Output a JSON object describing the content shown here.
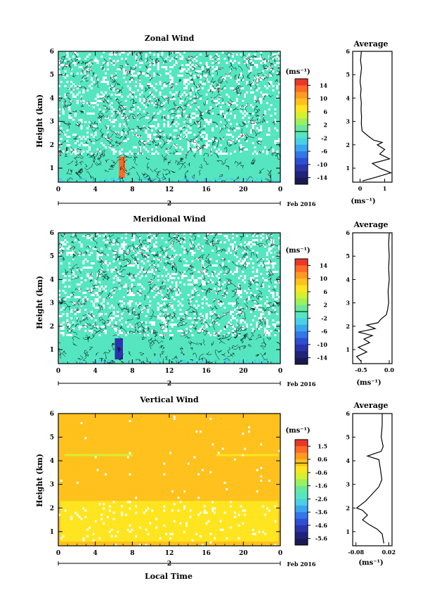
{
  "chart_data": [
    {
      "type": "heatmap",
      "title": "Zonal Wind",
      "ylabel": "Height (km)",
      "xlabel": "",
      "x_ticks": [
        "0",
        "4",
        "8",
        "12",
        "16",
        "20",
        "0"
      ],
      "xlim": [
        0,
        24
      ],
      "y_ticks": [
        "1",
        "2",
        "3",
        "4",
        "5",
        "6"
      ],
      "ylim": [
        0.4,
        6.0
      ],
      "date_day": "2",
      "date_month": "Feb 2016",
      "colorbar": {
        "unit": "(ms⁻¹)",
        "ticks": [
          "14",
          "10",
          "6",
          "2",
          "-2",
          "-6",
          "-10",
          "-14"
        ],
        "range": [
          -16,
          16
        ],
        "dominant_value": 0,
        "colors": [
          "#e8382a",
          "#ff6a26",
          "#ff9a22",
          "#ffc11d",
          "#ffe520",
          "#d6f02f",
          "#9ef05c",
          "#6ae89a",
          "#55e6c0",
          "#4ad0e6",
          "#3aa6ee",
          "#3278e6",
          "#2d4fd4",
          "#2a34a8",
          "#21237a",
          "#1a1a52"
        ]
      },
      "main_value": 0,
      "anomalies": [
        {
          "label": "red patch",
          "value": 14,
          "x": [
            6.5,
            7.1
          ],
          "y": [
            0.55,
            1.5
          ]
        }
      ],
      "profile": {
        "title": "Average",
        "x_ticks": [
          "0",
          "1"
        ],
        "xlim": [
          -0.3,
          1.3
        ],
        "y_ticks": [
          "1",
          "2",
          "3",
          "4",
          "5",
          "6"
        ],
        "ylim": [
          0.4,
          6.0
        ],
        "xlabel": "(ms⁻¹)",
        "points": [
          [
            0.05,
            6.0
          ],
          [
            0.02,
            5.6
          ],
          [
            0.06,
            5.3
          ],
          [
            0.03,
            5.0
          ],
          [
            0.0,
            4.7
          ],
          [
            0.04,
            4.4
          ],
          [
            0.02,
            4.1
          ],
          [
            0.05,
            3.8
          ],
          [
            0.04,
            3.5
          ],
          [
            0.06,
            3.2
          ],
          [
            0.05,
            2.9
          ],
          [
            0.08,
            2.6
          ],
          [
            0.3,
            2.4
          ],
          [
            0.55,
            2.2
          ],
          [
            0.9,
            2.1
          ],
          [
            0.7,
            2.0
          ],
          [
            1.0,
            1.8
          ],
          [
            0.8,
            1.6
          ],
          [
            1.2,
            1.4
          ],
          [
            0.5,
            1.2
          ],
          [
            0.8,
            1.0
          ],
          [
            1.25,
            0.8
          ],
          [
            0.6,
            0.6
          ],
          [
            0.1,
            0.45
          ]
        ]
      }
    },
    {
      "type": "heatmap",
      "title": "Meridional Wind",
      "ylabel": "Height (km)",
      "xlabel": "",
      "x_ticks": [
        "0",
        "4",
        "8",
        "12",
        "16",
        "20",
        "0"
      ],
      "xlim": [
        0,
        24
      ],
      "y_ticks": [
        "1",
        "2",
        "3",
        "4",
        "5",
        "6"
      ],
      "ylim": [
        0.4,
        6.0
      ],
      "date_day": "2",
      "date_month": "Feb 2016",
      "colorbar": {
        "unit": "(ms⁻¹)",
        "ticks": [
          "14",
          "10",
          "6",
          "2",
          "-2",
          "-6",
          "-10",
          "-14"
        ],
        "range": [
          -16,
          16
        ],
        "dominant_value": 0,
        "colors": [
          "#e8382a",
          "#ff6a26",
          "#ff9a22",
          "#ffc11d",
          "#ffe520",
          "#d6f02f",
          "#9ef05c",
          "#6ae89a",
          "#55e6c0",
          "#4ad0e6",
          "#3aa6ee",
          "#3278e6",
          "#2d4fd4",
          "#2a34a8",
          "#21237a",
          "#1a1a52"
        ]
      },
      "main_value": 0,
      "anomalies": [
        {
          "label": "blue patch",
          "value": -10,
          "x": [
            6.2,
            6.9
          ],
          "y": [
            0.6,
            1.5
          ]
        }
      ],
      "profile": {
        "title": "Average",
        "x_ticks": [
          "-0.5",
          "0.0"
        ],
        "xlim": [
          -0.65,
          0.05
        ],
        "y_ticks": [
          "1",
          "2",
          "3",
          "4",
          "5",
          "6"
        ],
        "ylim": [
          0.4,
          6.0
        ],
        "xlabel": "(ms⁻¹)",
        "points": [
          [
            0.0,
            6.0
          ],
          [
            -0.01,
            5.5
          ],
          [
            0.0,
            5.0
          ],
          [
            -0.01,
            4.5
          ],
          [
            0.0,
            4.0
          ],
          [
            -0.02,
            3.5
          ],
          [
            -0.01,
            3.0
          ],
          [
            -0.03,
            2.7
          ],
          [
            -0.05,
            2.5
          ],
          [
            -0.15,
            2.3
          ],
          [
            -0.2,
            2.15
          ],
          [
            -0.4,
            2.05
          ],
          [
            -0.25,
            1.9
          ],
          [
            -0.55,
            1.75
          ],
          [
            -0.3,
            1.6
          ],
          [
            -0.45,
            1.45
          ],
          [
            -0.35,
            1.3
          ],
          [
            -0.55,
            1.1
          ],
          [
            -0.4,
            0.9
          ],
          [
            -0.58,
            0.7
          ],
          [
            -0.5,
            0.5
          ]
        ]
      }
    },
    {
      "type": "heatmap",
      "title": "Vertical Wind",
      "ylabel": "Height (km)",
      "xlabel": "Local Time",
      "x_ticks": [
        "0",
        "4",
        "8",
        "12",
        "16",
        "20",
        "0"
      ],
      "xlim": [
        0,
        24
      ],
      "y_ticks": [
        "1",
        "2",
        "3",
        "4",
        "5",
        "6"
      ],
      "ylim": [
        0.4,
        6.0
      ],
      "date_day": "2",
      "date_month": "Feb 2016",
      "colorbar": {
        "unit": "(ms⁻¹)",
        "ticks": [
          "1.5",
          "0.6",
          "-0.6",
          "-1.6",
          "-2.6",
          "-3.6",
          "-4.6",
          "-5.6"
        ],
        "range": [
          -6.1,
          2.0
        ],
        "dominant_value": 0.2,
        "colors": [
          "#e8382a",
          "#ff6a26",
          "#ff9a22",
          "#ffc11d",
          "#ffe520",
          "#d6f02f",
          "#9ef05c",
          "#6ae89a",
          "#55e6c0",
          "#4ad0e6",
          "#3aa6ee",
          "#3278e6",
          "#2d4fd4",
          "#2a34a8",
          "#21237a",
          "#1a1a52"
        ]
      },
      "main_value": 0.2,
      "anomalies": [
        {
          "label": "low-level band",
          "value": -0.4,
          "x": [
            0.3,
            23.8
          ],
          "y": [
            0.55,
            2.3
          ]
        },
        {
          "label": "4.2 km line",
          "value": -0.6,
          "x": [
            0.7,
            8.0
          ],
          "y": [
            4.17,
            4.24
          ]
        },
        {
          "label": "4.2 km line right",
          "value": -0.5,
          "x": [
            17.0,
            23.8
          ],
          "y": [
            4.17,
            4.24
          ]
        }
      ],
      "profile": {
        "title": "Average",
        "x_ticks": [
          "-0.08",
          "0.02"
        ],
        "xlim": [
          -0.09,
          0.03
        ],
        "y_ticks": [
          "1",
          "2",
          "3",
          "4",
          "5",
          "6"
        ],
        "ylim": [
          0.4,
          6.0
        ],
        "xlabel": "(ms⁻¹)",
        "points": [
          [
            0.0,
            6.0
          ],
          [
            0.0,
            5.5
          ],
          [
            -0.003,
            5.0
          ],
          [
            0.003,
            4.6
          ],
          [
            -0.003,
            4.4
          ],
          [
            -0.045,
            4.2
          ],
          [
            -0.01,
            4.05
          ],
          [
            -0.005,
            3.6
          ],
          [
            -0.001,
            3.2
          ],
          [
            -0.01,
            2.9
          ],
          [
            -0.03,
            2.6
          ],
          [
            -0.05,
            2.3
          ],
          [
            -0.078,
            2.0
          ],
          [
            -0.06,
            1.9
          ],
          [
            -0.045,
            1.7
          ],
          [
            -0.06,
            1.5
          ],
          [
            -0.04,
            1.3
          ],
          [
            -0.015,
            1.1
          ],
          [
            0.0,
            0.9
          ],
          [
            0.005,
            0.5
          ]
        ]
      }
    }
  ]
}
